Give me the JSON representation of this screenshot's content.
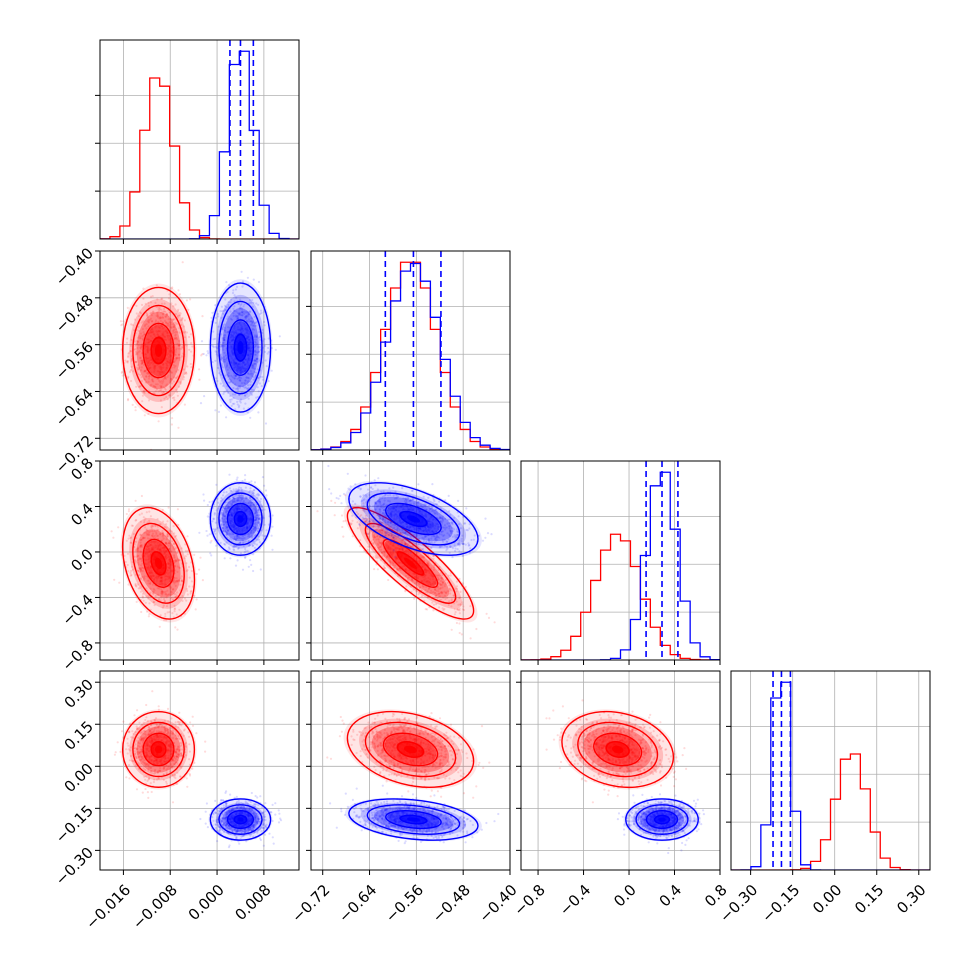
{
  "chart_data": {
    "type": "corner",
    "grid": true,
    "parameters": [
      {
        "range": [
          -0.02,
          0.014
        ],
        "ticks": [
          -0.016,
          -0.008,
          0.0,
          0.008
        ],
        "tick_labels": [
          "−0.016",
          "−0.008",
          "0.000",
          "0.008"
        ]
      },
      {
        "range": [
          -0.74,
          -0.4
        ],
        "ticks": [
          -0.72,
          -0.64,
          -0.56,
          -0.48,
          -0.4
        ],
        "tick_labels": [
          "−0.72",
          "−0.64",
          "−0.56",
          "−0.48",
          "−0.40"
        ]
      },
      {
        "range": [
          -0.95,
          0.8
        ],
        "ticks": [
          -0.8,
          -0.4,
          0.0,
          0.4,
          0.8
        ],
        "tick_labels": [
          "−0.8",
          "−0.4",
          "0.0",
          "0.4",
          "0.8"
        ]
      },
      {
        "range": [
          -0.37,
          0.34
        ],
        "ticks": [
          -0.3,
          -0.15,
          0.0,
          0.15,
          0.3
        ],
        "tick_labels": [
          "−0.30",
          "−0.15",
          "0.00",
          "0.15",
          "0.30"
        ]
      }
    ],
    "series": [
      {
        "color": "#ff0000",
        "mean": [
          -0.01,
          -0.57,
          -0.1,
          0.06
        ],
        "sigma": [
          0.0025,
          0.044,
          0.2,
          0.055
        ],
        "corr": [
          [
            1,
            0,
            -0.3,
            0
          ],
          [
            0,
            1,
            -0.85,
            -0.3
          ],
          [
            -0.3,
            -0.85,
            1,
            -0.2
          ],
          [
            0,
            -0.3,
            -0.2,
            1
          ]
        ],
        "quantiles": null
      },
      {
        "color": "#0000ff",
        "mean": [
          0.004,
          -0.565,
          0.29,
          -0.19
        ],
        "sigma": [
          0.0021,
          0.045,
          0.13,
          0.03
        ],
        "corr": [
          [
            1,
            0,
            0,
            0
          ],
          [
            0,
            1,
            -0.55,
            -0.3
          ],
          [
            0,
            -0.55,
            1,
            0
          ],
          [
            0,
            -0.3,
            0,
            1
          ]
        ],
        "quantiles": [
          [
            0.0022,
            0.004,
            0.0062
          ],
          [
            -0.613,
            -0.565,
            -0.518
          ],
          [
            0.15,
            0.29,
            0.43
          ],
          [
            -0.22,
            -0.19,
            -0.158
          ]
        ]
      }
    ]
  }
}
